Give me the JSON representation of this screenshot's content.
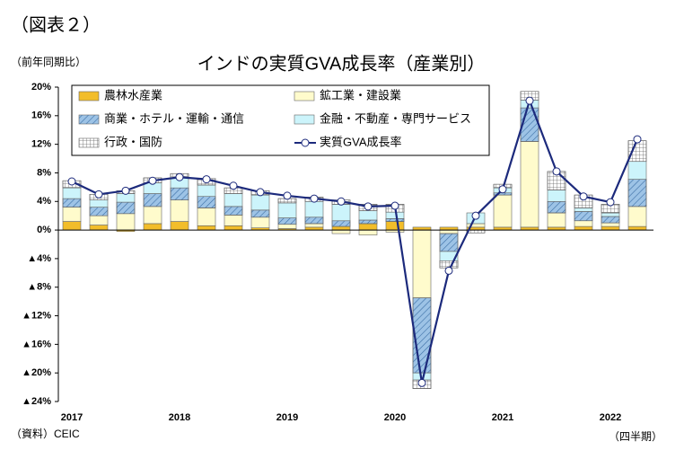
{
  "chart_data": {
    "type": "bar",
    "figure_label": "（図表２）",
    "title": "インドの実質GVA成長率（産業別）",
    "y_axis_label": "（前年同期比）",
    "source": "（資料）CEIC",
    "x_axis_label": "（四半期）",
    "categories": [
      "2017",
      null,
      null,
      null,
      "2018",
      null,
      null,
      null,
      "2019",
      null,
      null,
      null,
      "2020",
      null,
      null,
      null,
      "2021",
      null,
      null,
      null,
      "2022",
      null
    ],
    "series": [
      {
        "name": "農林水産業",
        "color": "#f2bd2a",
        "values": [
          1.2,
          0.7,
          -0.2,
          0.9,
          1.2,
          0.6,
          0.6,
          0.3,
          0.2,
          0.4,
          0.5,
          0.9,
          1.2,
          0.4,
          0.4,
          0.4,
          0.4,
          0.4,
          0.4,
          0.5,
          0.5,
          0.5
        ]
      },
      {
        "name": "鉱工業・建設業",
        "color": "#fffbcc",
        "values": [
          2.0,
          1.3,
          2.3,
          2.4,
          3.0,
          2.5,
          1.5,
          1.5,
          0.6,
          0.5,
          -0.5,
          -0.7,
          -0.3,
          -9.5,
          -0.5,
          0.5,
          4.5,
          12.0,
          2.0,
          0.8,
          0.5,
          2.8
        ]
      },
      {
        "name": "商業・ホテル・運輸・通信",
        "color": "#9dc3e6",
        "pattern": "hatch",
        "values": [
          1.2,
          1.2,
          1.6,
          1.8,
          1.7,
          1.6,
          1.2,
          1.0,
          0.9,
          0.9,
          0.8,
          0.5,
          0.4,
          -10.5,
          -2.5,
          0.0,
          0.3,
          4.7,
          1.6,
          1.3,
          0.9,
          3.8
        ]
      },
      {
        "name": "金融・不動産・専門サービス",
        "color": "#ccf4fb",
        "values": [
          1.5,
          1.0,
          1.2,
          1.5,
          1.4,
          1.6,
          1.8,
          2.1,
          2.1,
          2.2,
          2.3,
          1.3,
          0.9,
          -1.0,
          -1.3,
          1.5,
          0.7,
          1.1,
          1.6,
          0.5,
          0.5,
          2.5
        ]
      },
      {
        "name": "行政・国防",
        "color": "#ffffff",
        "pattern": "grid",
        "values": [
          1.0,
          0.8,
          0.4,
          0.7,
          0.6,
          0.9,
          0.8,
          0.6,
          0.6,
          0.6,
          0.6,
          0.9,
          1.1,
          -1.2,
          -1.0,
          -0.4,
          0.5,
          1.2,
          2.6,
          1.8,
          1.2,
          2.9
        ]
      },
      {
        "name": "実質GVA成長率",
        "type": "line",
        "color": "#1c2a7c",
        "values": [
          6.8,
          5.0,
          5.5,
          6.9,
          7.4,
          7.1,
          6.2,
          5.3,
          4.8,
          4.4,
          4.0,
          3.3,
          3.4,
          -21.4,
          -5.7,
          2.0,
          5.7,
          18.1,
          8.2,
          4.7,
          3.9,
          12.7
        ]
      }
    ],
    "ylim": [
      -24,
      20
    ],
    "yticks": [
      {
        "value": -24,
        "label": "▲24%"
      },
      {
        "value": -20,
        "label": "▲20%"
      },
      {
        "value": -16,
        "label": "▲16%"
      },
      {
        "value": -12,
        "label": "▲12%"
      },
      {
        "value": -8,
        "label": "▲8%"
      },
      {
        "value": -4,
        "label": "▲4%"
      },
      {
        "value": 0,
        "label": "0%"
      },
      {
        "value": 4,
        "label": "4%"
      },
      {
        "value": 8,
        "label": "8%"
      },
      {
        "value": 12,
        "label": "12%"
      },
      {
        "value": 16,
        "label": "16%"
      },
      {
        "value": 20,
        "label": "20%"
      }
    ]
  }
}
